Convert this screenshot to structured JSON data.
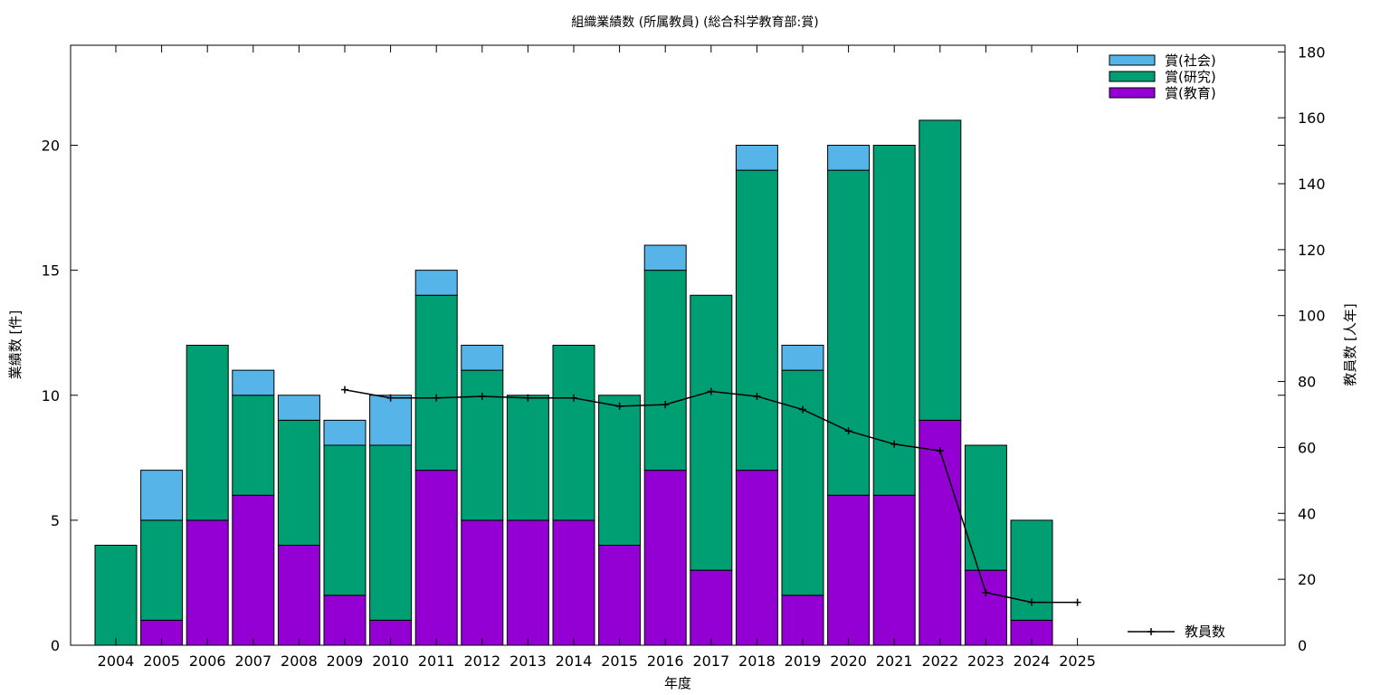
{
  "chart_data": {
    "type": "bar",
    "title": "組織業績数 (所属教員) (総合科学教育部:賞)",
    "xlabel": "年度",
    "ylabel": "業績数 [件]",
    "y2label": "教員数 [人年]",
    "stacked": true,
    "categories": [
      "2004",
      "2005",
      "2006",
      "2007",
      "2008",
      "2009",
      "2010",
      "2011",
      "2012",
      "2013",
      "2014",
      "2015",
      "2016",
      "2017",
      "2018",
      "2019",
      "2020",
      "2021",
      "2022",
      "2023",
      "2024",
      "2025"
    ],
    "ylim": [
      0,
      24
    ],
    "yticks": [
      0,
      5,
      10,
      15,
      20
    ],
    "y2lim": [
      0,
      182
    ],
    "y2ticks": [
      0,
      20,
      40,
      60,
      80,
      100,
      120,
      140,
      160,
      180
    ],
    "legend_position": "top-right",
    "series": [
      {
        "name": "賞(教育)",
        "color": "#9400d3",
        "values": [
          0,
          1,
          5,
          6,
          4,
          2,
          1,
          7,
          5,
          5,
          5,
          4,
          7,
          3,
          7,
          2,
          6,
          6,
          9,
          3,
          1,
          0
        ]
      },
      {
        "name": "賞(研究)",
        "color": "#009e73",
        "values": [
          4,
          4,
          7,
          4,
          5,
          6,
          7,
          7,
          6,
          5,
          7,
          6,
          8,
          11,
          12,
          9,
          13,
          14,
          12,
          5,
          4,
          0
        ]
      },
      {
        "name": "賞(社会)",
        "color": "#56b4e9",
        "values": [
          0,
          2,
          0,
          1,
          1,
          1,
          2,
          1,
          1,
          0,
          0,
          0,
          1,
          0,
          1,
          1,
          1,
          0,
          0,
          0,
          0,
          0
        ]
      }
    ],
    "line_series": {
      "name": "教員数",
      "axis": "y2",
      "color": "#000000",
      "x": [
        "2009",
        "2010",
        "2011",
        "2012",
        "2013",
        "2014",
        "2015",
        "2016",
        "2017",
        "2018",
        "2019",
        "2020",
        "2021",
        "2022",
        "2023",
        "2024",
        "2025"
      ],
      "values": [
        77.5,
        75,
        75,
        75.5,
        75,
        75,
        72.5,
        73,
        77,
        75.5,
        71.5,
        65,
        61,
        59,
        16,
        13,
        13
      ]
    }
  }
}
